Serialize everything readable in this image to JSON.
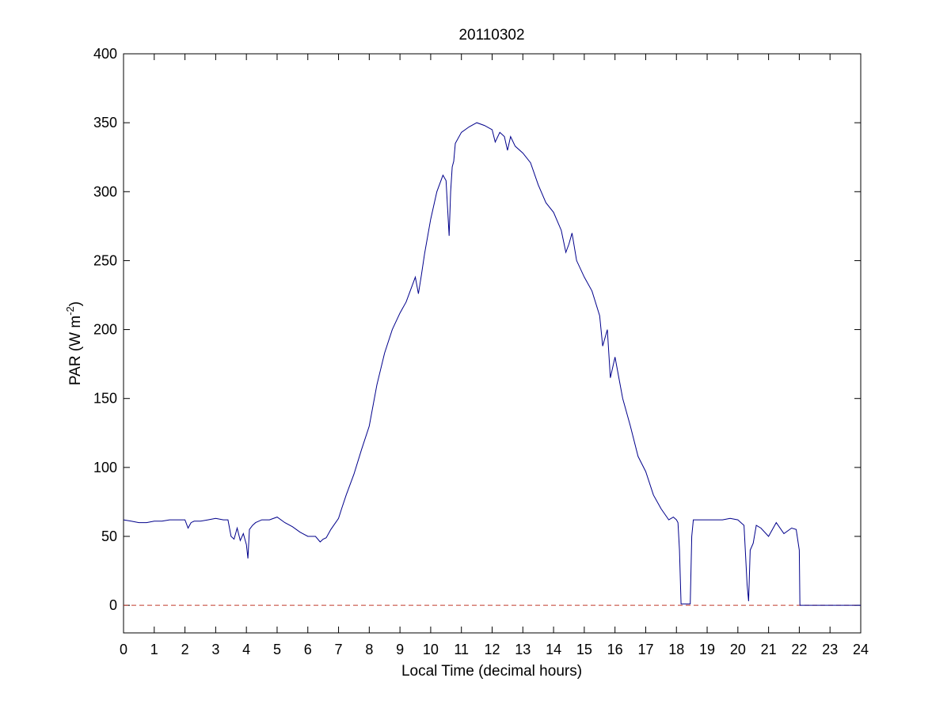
{
  "chart_data": {
    "type": "line",
    "title": "20110302",
    "xlabel": "Local Time (decimal hours)",
    "ylabel_main": "PAR (W m",
    "ylabel_sup": "-2",
    "ylabel_close": ")",
    "xlim": [
      0,
      24
    ],
    "ylim": [
      -20,
      400
    ],
    "x_ticks": [
      0,
      1,
      2,
      3,
      4,
      5,
      6,
      7,
      8,
      9,
      10,
      11,
      12,
      13,
      14,
      15,
      16,
      17,
      18,
      19,
      20,
      21,
      22,
      23,
      24
    ],
    "y_ticks": [
      0,
      50,
      100,
      150,
      200,
      250,
      300,
      350,
      400
    ],
    "grid": false,
    "line_color": "#00008b",
    "reference_line": {
      "y": 0,
      "style": "dashed",
      "color": "#c0392b"
    },
    "series": [
      {
        "x": [
          0.0,
          0.25,
          0.5,
          0.75,
          1.0,
          1.25,
          1.5,
          1.75,
          2.0,
          2.1,
          2.2,
          2.3,
          2.5,
          2.75,
          3.0,
          3.25,
          3.4,
          3.5,
          3.6,
          3.7,
          3.8,
          3.9,
          4.0,
          4.05,
          4.1,
          4.2,
          4.3,
          4.5,
          4.75,
          5.0,
          5.25,
          5.5,
          5.75,
          6.0,
          6.25,
          6.4,
          6.5,
          6.6,
          6.75,
          7.0,
          7.1,
          7.25,
          7.5,
          7.75,
          8.0,
          8.25,
          8.5,
          8.75,
          9.0,
          9.2,
          9.4,
          9.5,
          9.6,
          9.7,
          9.8,
          10.0,
          10.2,
          10.4,
          10.5,
          10.6,
          10.65,
          10.7,
          10.75,
          10.8,
          11.0,
          11.25,
          11.5,
          11.75,
          12.0,
          12.1,
          12.25,
          12.4,
          12.5,
          12.6,
          12.75,
          13.0,
          13.25,
          13.5,
          13.75,
          14.0,
          14.25,
          14.4,
          14.5,
          14.6,
          14.75,
          15.0,
          15.25,
          15.5,
          15.6,
          15.75,
          15.85,
          16.0,
          16.25,
          16.5,
          16.75,
          17.0,
          17.25,
          17.5,
          17.75,
          17.9,
          18.0,
          18.05,
          18.1,
          18.15,
          18.2,
          18.3,
          18.4,
          18.45,
          18.5,
          18.55,
          18.6,
          18.75,
          19.0,
          19.25,
          19.5,
          19.75,
          20.0,
          20.1,
          20.2,
          20.3,
          20.35,
          20.4,
          20.5,
          20.6,
          20.75,
          21.0,
          21.25,
          21.5,
          21.75,
          21.9,
          22.0,
          22.02,
          22.05,
          22.5,
          23.0,
          23.5,
          24.0
        ],
        "y": [
          62,
          61,
          60,
          60,
          61,
          61,
          62,
          62,
          62,
          56,
          60,
          61,
          61,
          62,
          63,
          62,
          62,
          50,
          48,
          56,
          47,
          52,
          44,
          34,
          55,
          58,
          60,
          62,
          62,
          64,
          60,
          57,
          53,
          50,
          50,
          46,
          48,
          49,
          55,
          63,
          70,
          80,
          95,
          113,
          130,
          160,
          183,
          200,
          212,
          220,
          232,
          238,
          226,
          240,
          255,
          280,
          300,
          312,
          308,
          268,
          300,
          318,
          322,
          335,
          343,
          347,
          350,
          348,
          345,
          336,
          343,
          340,
          330,
          340,
          333,
          328,
          321,
          305,
          292,
          285,
          272,
          256,
          262,
          270,
          250,
          238,
          228,
          210,
          188,
          200,
          165,
          180,
          150,
          130,
          108,
          97,
          80,
          70,
          62,
          64,
          62,
          60,
          40,
          1,
          1,
          1,
          1,
          1,
          50,
          62,
          62,
          62,
          62,
          62,
          62,
          63,
          62,
          60,
          58,
          15,
          3,
          40,
          45,
          58,
          56,
          50,
          60,
          52,
          56,
          55,
          40,
          0,
          0,
          0,
          0,
          0,
          0
        ]
      }
    ]
  }
}
